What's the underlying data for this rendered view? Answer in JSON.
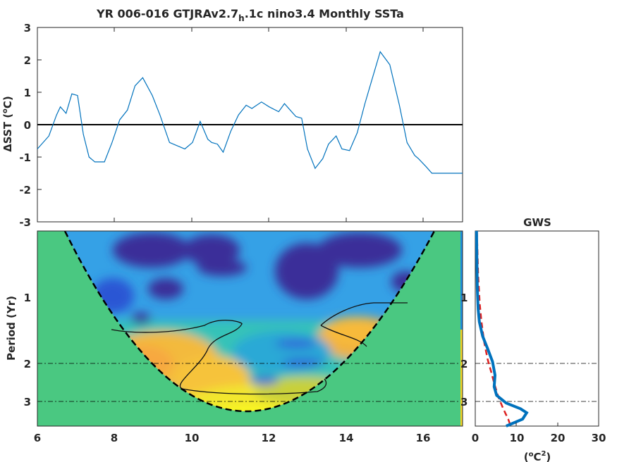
{
  "chart_data": [
    {
      "type": "line",
      "title_main": "YR 006-016 GTJRAv2.7",
      "title_sub": "h",
      "title_rest": ".1c nino3.4 Monthly SSTa",
      "ylabel_delta": "ΔSST (",
      "ylabel_deg": "o",
      "ylabel_unit": "C)",
      "xlim": [
        6,
        17.1
      ],
      "ylim": [
        -3,
        3
      ],
      "yticks": [
        "3",
        "2",
        "1",
        "0",
        "-1",
        "-2",
        "-3"
      ],
      "grid": false,
      "zero_line": true,
      "line_color": "#0072bd",
      "x": [
        6.0,
        6.3,
        6.5,
        6.6,
        6.75,
        6.9,
        7.05,
        7.2,
        7.35,
        7.5,
        7.75,
        7.95,
        8.15,
        8.35,
        8.55,
        8.75,
        9.0,
        9.2,
        9.45,
        9.65,
        9.85,
        10.05,
        10.25,
        10.45,
        10.55,
        10.7,
        10.85,
        11.05,
        11.25,
        11.45,
        11.6,
        11.85,
        12.05,
        12.3,
        12.45,
        12.6,
        12.75,
        12.9,
        13.05,
        13.25,
        13.45,
        13.6,
        13.8,
        13.95,
        14.15,
        14.35,
        14.55,
        14.75,
        14.95,
        15.2,
        15.45,
        15.65,
        15.85,
        15.95,
        16.15,
        16.3,
        16.55,
        16.8,
        17.0,
        17.1
      ],
      "y": [
        -0.75,
        -0.35,
        0.3,
        0.55,
        0.35,
        0.95,
        0.9,
        -0.3,
        -1.0,
        -1.15,
        -1.15,
        -0.55,
        0.15,
        0.45,
        1.2,
        1.45,
        0.9,
        0.3,
        -0.55,
        -0.65,
        -0.75,
        -0.55,
        0.1,
        -0.45,
        -0.55,
        -0.6,
        -0.85,
        -0.2,
        0.3,
        0.6,
        0.5,
        0.7,
        0.55,
        0.4,
        0.65,
        0.45,
        0.25,
        0.2,
        -0.75,
        -1.35,
        -1.05,
        -0.6,
        -0.35,
        -0.75,
        -0.8,
        -0.25,
        0.65,
        1.45,
        2.25,
        1.85,
        0.6,
        -0.55,
        -0.95,
        -1.05,
        -1.3,
        -1.5,
        -1.5,
        -1.5,
        -1.5,
        -1.5
      ]
    },
    {
      "type": "heatmap",
      "ylabel": "Period (Yr)",
      "xticks": [
        "6",
        "8",
        "10",
        "12",
        "14",
        "16"
      ],
      "xtick_values": [
        6,
        8,
        10,
        12,
        14,
        16
      ],
      "xlim": [
        6,
        17.1
      ],
      "ytick_labels": [
        "1",
        "2",
        "3"
      ],
      "ytick_values": [
        1,
        2,
        3
      ],
      "period_range": [
        0.35,
        3.7
      ],
      "scale": "log",
      "colormap": "parula",
      "cone_of_influence": true,
      "significance_contour": true,
      "period_reference_lines": [
        2,
        3
      ]
    },
    {
      "type": "line",
      "title": "GWS",
      "xlabel_base": "(",
      "xlabel_deg": "o",
      "xlabel_unit": "C",
      "xlabel_sq": "2",
      "xlabel_close": ")",
      "xticks": [
        "0",
        "10",
        "20",
        "30"
      ],
      "xlim": [
        0,
        30
      ],
      "series": [
        {
          "style": "solid",
          "color": "#0072bd",
          "power": [
            0.3,
            0.4,
            0.5,
            0.7,
            1.0,
            1.8,
            3.0,
            4.2,
            4.8,
            4.6,
            5.2,
            7.5,
            11.0,
            12.5,
            11.5,
            7.5
          ],
          "period": [
            0.35,
            0.5,
            0.7,
            0.9,
            1.05,
            1.25,
            1.45,
            1.7,
            2.0,
            2.3,
            2.55,
            2.8,
            3.0,
            3.15,
            3.4,
            3.7
          ]
        },
        {
          "style": "dashed",
          "color": "#dd2020",
          "power": [
            0.4,
            0.7,
            1.1,
            1.5,
            2.2,
            3.0,
            3.8,
            4.6,
            5.6,
            6.8,
            8.0,
            8.6
          ],
          "period": [
            0.35,
            0.6,
            0.85,
            1.05,
            1.35,
            1.65,
            1.9,
            2.2,
            2.6,
            3.0,
            3.4,
            3.7
          ]
        }
      ]
    }
  ]
}
